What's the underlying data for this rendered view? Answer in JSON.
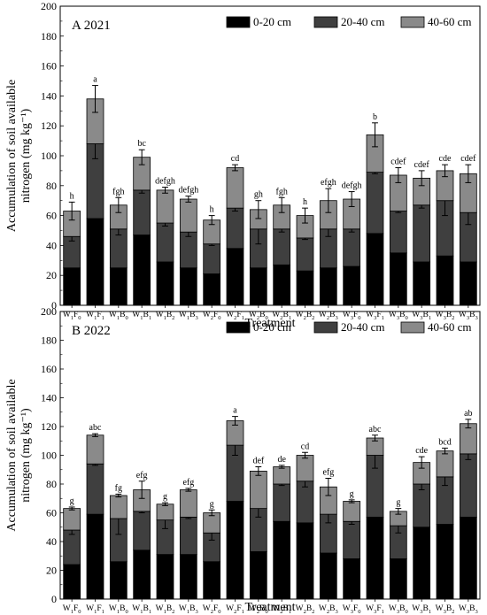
{
  "chart_data": [
    {
      "type": "bar",
      "stacked": true,
      "panel_label": "A 2021",
      "xlabel": "Treatment",
      "ylabel_line1": "Accumulation of soil available",
      "ylabel_line2": "nitrogen (mg kg⁻¹)",
      "ylim": [
        0,
        200
      ],
      "yticks": [
        "0",
        "20",
        "40",
        "60",
        "80",
        "100",
        "120",
        "140",
        "160",
        "180",
        "200"
      ],
      "categories": [
        "W₁F₀",
        "W₁F₁",
        "W₁B₀",
        "W₁B₁",
        "W₁B₂",
        "W₁B₃",
        "W₂F₀",
        "W₂F₁",
        "W₂B₀",
        "W₂B₁",
        "W₂B₂",
        "W₂B₃",
        "W₃F₀",
        "W₃F₁",
        "W₃B₀",
        "W₃B₁",
        "W₃B₂",
        "W₃B₃"
      ],
      "category_base": [
        "W",
        "W",
        "W",
        "W",
        "W",
        "W",
        "W",
        "W",
        "W",
        "W",
        "W",
        "W",
        "W",
        "W",
        "W",
        "W",
        "W",
        "W"
      ],
      "category_sub1": [
        "1",
        "1",
        "1",
        "1",
        "1",
        "1",
        "2",
        "2",
        "2",
        "2",
        "2",
        "2",
        "3",
        "3",
        "3",
        "3",
        "3",
        "3"
      ],
      "category_mid": [
        "F",
        "F",
        "B",
        "B",
        "B",
        "B",
        "F",
        "F",
        "B",
        "B",
        "B",
        "B",
        "F",
        "F",
        "B",
        "B",
        "B",
        "B"
      ],
      "category_sub2": [
        "0",
        "1",
        "0",
        "1",
        "2",
        "3",
        "0",
        "1",
        "0",
        "1",
        "2",
        "3",
        "0",
        "1",
        "0",
        "1",
        "2",
        "3"
      ],
      "legend": [
        "0-20 cm",
        "20-40 cm",
        "40-60 cm"
      ],
      "legend_position": "top-right",
      "series": [
        {
          "name": "0-20 cm",
          "color": "#000000",
          "values": [
            25,
            58,
            25,
            47,
            29,
            25,
            21,
            38,
            25,
            27,
            23,
            25,
            26,
            48,
            35,
            29,
            33,
            29
          ],
          "errors": [
            5,
            8,
            3,
            8,
            3,
            4,
            2,
            5,
            3,
            2,
            2,
            3,
            3,
            6,
            4,
            4,
            5,
            3
          ]
        },
        {
          "name": "20-40 cm",
          "color": "#3f3f3f",
          "values": [
            21,
            50,
            26,
            30,
            26,
            24,
            20,
            27,
            26,
            24,
            22,
            26,
            25,
            41,
            28,
            38,
            37,
            33
          ],
          "errors": [
            3,
            10,
            4,
            2,
            2,
            3,
            1,
            2,
            10,
            2,
            1,
            5,
            2,
            1,
            1,
            2,
            10,
            8
          ]
        },
        {
          "name": "40-60 cm",
          "color": "#8a8a8a",
          "values": [
            17,
            30,
            16,
            22,
            22,
            22,
            16,
            27,
            13,
            16,
            15,
            19,
            20,
            25,
            24,
            18,
            20,
            26
          ],
          "errors": [
            6,
            9,
            5,
            5,
            2,
            2,
            3,
            2,
            6,
            5,
            5,
            8,
            5,
            8,
            5,
            5,
            4,
            6
          ]
        }
      ],
      "letters": [
        "h",
        "a",
        "fgh",
        "bc",
        "defgh",
        "defgh",
        "h",
        "cd",
        "gh",
        "fgh",
        "h",
        "efgh",
        "defgh",
        "b",
        "cdef",
        "cdef",
        "cde",
        "cdef"
      ]
    },
    {
      "type": "bar",
      "stacked": true,
      "panel_label": "B 2022",
      "xlabel": "Treatment",
      "ylabel_line1": "Accumulation of soil available",
      "ylabel_line2": "nitrogen (mg kg⁻¹)",
      "ylim": [
        0,
        200
      ],
      "yticks": [
        "0",
        "20",
        "40",
        "60",
        "80",
        "100",
        "120",
        "140",
        "160",
        "180",
        "200"
      ],
      "categories": [
        "W₁F₀",
        "W₁F₁",
        "W₁B₀",
        "W₁B₁",
        "W₁B₂",
        "W₁B₃",
        "W₂F₀",
        "W₂F₁",
        "W₂B₀",
        "W₂B₁",
        "W₂B₂",
        "W₂B₃",
        "W₃F₀",
        "W₃F₁",
        "W₃B₀",
        "W₃B₁",
        "W₃B₂",
        "W₃B₃"
      ],
      "category_base": [
        "W",
        "W",
        "W",
        "W",
        "W",
        "W",
        "W",
        "W",
        "W",
        "W",
        "W",
        "W",
        "W",
        "W",
        "W",
        "W",
        "W",
        "W"
      ],
      "category_sub1": [
        "1",
        "1",
        "1",
        "1",
        "1",
        "1",
        "2",
        "2",
        "2",
        "2",
        "2",
        "2",
        "3",
        "3",
        "3",
        "3",
        "3",
        "3"
      ],
      "category_mid": [
        "F",
        "F",
        "B",
        "B",
        "B",
        "B",
        "F",
        "F",
        "B",
        "B",
        "B",
        "B",
        "F",
        "F",
        "B",
        "B",
        "B",
        "B"
      ],
      "category_sub2": [
        "0",
        "1",
        "0",
        "1",
        "2",
        "3",
        "0",
        "1",
        "0",
        "1",
        "2",
        "3",
        "0",
        "1",
        "0",
        "1",
        "2",
        "3"
      ],
      "legend": [
        "0-20 cm",
        "20-40 cm",
        "40-60 cm"
      ],
      "legend_position": "top-right",
      "series": [
        {
          "name": "0-20 cm",
          "color": "#000000",
          "values": [
            24,
            59,
            26,
            34,
            31,
            31,
            26,
            68,
            33,
            54,
            53,
            32,
            28,
            57,
            28,
            50,
            52,
            57
          ],
          "errors": [
            1,
            10,
            1,
            2,
            6,
            2,
            2,
            12,
            2,
            2,
            1,
            1,
            1,
            1,
            2,
            5,
            4,
            7
          ]
        },
        {
          "name": "20-40 cm",
          "color": "#3f3f3f",
          "values": [
            24,
            35,
            30,
            27,
            24,
            26,
            20,
            39,
            30,
            26,
            29,
            27,
            26,
            43,
            23,
            30,
            33,
            44
          ],
          "errors": [
            3,
            1,
            11,
            1,
            6,
            1,
            5,
            7,
            6,
            1,
            4,
            6,
            2,
            9,
            5,
            4,
            6,
            4
          ]
        },
        {
          "name": "40-60 cm",
          "color": "#8a8a8a",
          "values": [
            15,
            20,
            16,
            15,
            11,
            19,
            14,
            17,
            26,
            12,
            18,
            19,
            14,
            12,
            10,
            15,
            18,
            21
          ],
          "errors": [
            1,
            1,
            1,
            6,
            1,
            1,
            2,
            3,
            3,
            1,
            2,
            6,
            1,
            2,
            2,
            4,
            2,
            3
          ]
        }
      ],
      "letters": [
        "g",
        "abc",
        "fg",
        "efg",
        "g",
        "efg",
        "g",
        "a",
        "def",
        "de",
        "cd",
        "efg",
        "g",
        "abc",
        "g",
        "cde",
        "bcd",
        "ab"
      ]
    }
  ]
}
